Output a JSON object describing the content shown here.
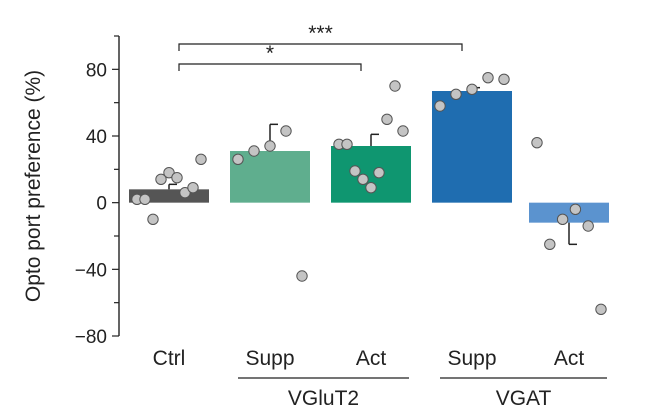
{
  "chart_data": {
    "type": "bar",
    "title": "",
    "ylabel": "Opto port preference (%)",
    "xlabel": "",
    "ylim": [
      -80,
      100
    ],
    "yticks": [
      -80,
      -40,
      0,
      40,
      80
    ],
    "yticks_labeled": [
      "−80",
      "−40",
      "0",
      "40",
      "80"
    ],
    "categories": [
      "Ctrl",
      "Supp",
      "Act",
      "Supp",
      "Act"
    ],
    "groups": [
      {
        "label": "VGluT2",
        "categories": [
          1,
          2
        ]
      },
      {
        "label": "VGAT",
        "categories": [
          3,
          4
        ]
      }
    ],
    "values": [
      8,
      31,
      34,
      67,
      -12
    ],
    "errors": [
      3,
      16,
      7,
      2,
      13
    ],
    "colors": [
      "#555555",
      "#5fae8e",
      "#0f9670",
      "#1f6db0",
      "#5b93cf"
    ],
    "points": [
      [
        2,
        2,
        -10,
        14,
        18,
        15,
        6,
        9,
        26
      ],
      [
        26,
        31,
        34,
        43,
        -44
      ],
      [
        35,
        35,
        19,
        14,
        9,
        18,
        50,
        70,
        43
      ],
      [
        58,
        65,
        68,
        75,
        74
      ],
      [
        36,
        -25,
        -10,
        -4,
        -14,
        -64
      ]
    ],
    "significance": [
      {
        "from": 0,
        "to": 2,
        "label": "*"
      },
      {
        "from": 0,
        "to": 3,
        "label": "***"
      }
    ]
  }
}
